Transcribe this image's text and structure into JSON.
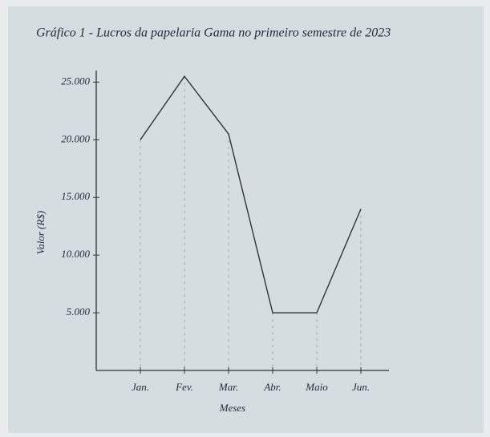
{
  "chart_data": {
    "type": "line",
    "title": "Gráfico 1 - Lucros da papelaria Gama no primeiro semestre de 2023",
    "y_label": "Valor (R$)",
    "x_label": "Meses",
    "categories": [
      "Jan.",
      "Fev.",
      "Mar.",
      "Abr.",
      "Maio",
      "Jun."
    ],
    "values": [
      20000,
      25500,
      20500,
      5000,
      5000,
      14000
    ],
    "color": "#333333",
    "ylim": [
      0,
      26000
    ],
    "yticks": [
      {
        "value": 5000,
        "label": "5.000"
      },
      {
        "value": 10000,
        "label": "10.000"
      },
      {
        "value": 15000,
        "label": "15.000"
      },
      {
        "value": 20000,
        "label": "20.000"
      },
      {
        "value": 25000,
        "label": "25.000"
      }
    ]
  }
}
